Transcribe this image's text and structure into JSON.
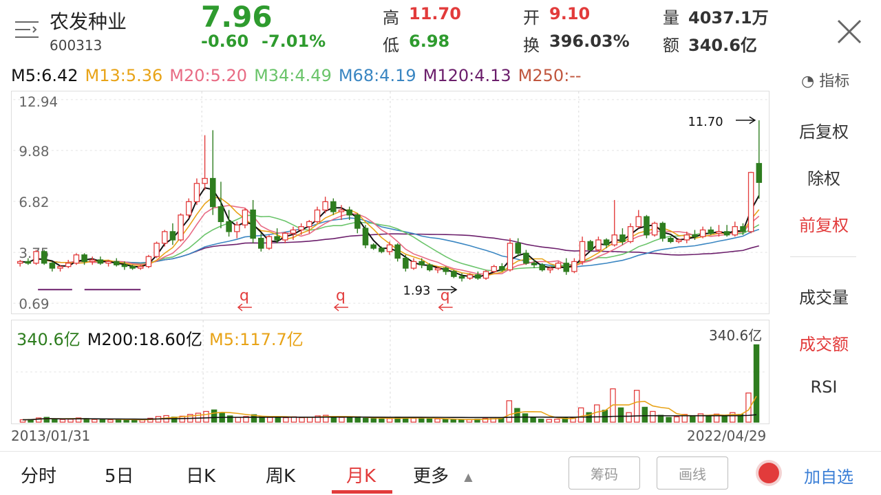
{
  "header": {
    "stock_name": "农发种业",
    "stock_code": "600313",
    "price": "7.96",
    "change": "-0.60",
    "change_pct": "-7.01%",
    "high_label": "高",
    "high_value": "11.70",
    "low_label": "低",
    "low_value": "6.98",
    "open_label": "开",
    "open_value": "9.10",
    "turnover_label": "换",
    "turnover_value": "396.03%",
    "volume_label": "量",
    "volume_value": "4037.1万",
    "amount_label": "额",
    "amount_value": "340.6亿"
  },
  "ma_row": {
    "m5": "M5:6.42",
    "m13": "M13:5.36",
    "m20": "M20:5.20",
    "m34": "M34:4.49",
    "m68": "M68:4.19",
    "m120": "M120:4.13",
    "m250": "M250:--",
    "indicator_label": "指标"
  },
  "colors": {
    "up": "#e23b3b",
    "down": "#2e7d1f",
    "m5": "#111111",
    "m13": "#e8a317",
    "m20": "#e86b84",
    "m34": "#6ac46a",
    "m68": "#3a86c2",
    "m120": "#6b1e6b",
    "m250": "#c0563e"
  },
  "price_axis": {
    "ticks": [
      "12.94",
      "9.88",
      "6.82",
      "3.75",
      "0.69"
    ]
  },
  "annotations": {
    "high_mark": "11.70",
    "low_mark": "1.93",
    "q_mark": "q"
  },
  "volume_panel": {
    "amount": "340.6亿",
    "m200": "M200:18.60亿",
    "m5": "M5:117.7亿",
    "max_label": "340.6亿"
  },
  "dates": {
    "start": "2013/01/31",
    "end": "2022/04/29"
  },
  "side_menu": {
    "items": [
      "后复权",
      "除权",
      "前复权",
      "成交量",
      "成交额",
      "RSI"
    ]
  },
  "tabs": [
    "分时",
    "5日",
    "日K",
    "周K",
    "月K",
    "更多"
  ],
  "buttons": {
    "chips": "筹码",
    "draw": "画线",
    "add_fav": "加自选"
  },
  "chart_data": {
    "type": "candlestick",
    "period": "monthly",
    "ylim": [
      0.69,
      12.94
    ],
    "candles": [
      [
        3.1,
        3.3,
        2.9,
        3.2
      ],
      [
        3.2,
        3.4,
        3.0,
        3.1
      ],
      [
        3.1,
        3.9,
        3.0,
        3.8
      ],
      [
        3.8,
        3.9,
        3.0,
        3.1
      ],
      [
        3.1,
        3.2,
        2.6,
        2.8
      ],
      [
        2.8,
        3.0,
        2.6,
        2.9
      ],
      [
        2.9,
        3.3,
        2.8,
        3.1
      ],
      [
        3.1,
        3.7,
        3.0,
        3.6
      ],
      [
        3.6,
        3.7,
        3.0,
        3.2
      ],
      [
        3.2,
        3.5,
        3.0,
        3.3
      ],
      [
        3.3,
        3.5,
        3.0,
        3.1
      ],
      [
        3.1,
        3.3,
        2.9,
        3.2
      ],
      [
        3.2,
        3.4,
        2.9,
        3.0
      ],
      [
        3.0,
        3.2,
        2.7,
        2.9
      ],
      [
        2.9,
        3.0,
        2.7,
        2.8
      ],
      [
        2.8,
        3.0,
        2.7,
        2.9
      ],
      [
        2.9,
        3.6,
        2.8,
        3.5
      ],
      [
        3.5,
        4.4,
        3.4,
        4.3
      ],
      [
        4.3,
        5.1,
        4.1,
        5.0
      ],
      [
        5.0,
        5.5,
        4.2,
        4.5
      ],
      [
        4.5,
        6.1,
        4.4,
        6.0
      ],
      [
        6.0,
        7.0,
        5.8,
        6.8
      ],
      [
        6.8,
        8.2,
        6.6,
        7.9
      ],
      [
        7.9,
        10.8,
        7.5,
        8.2
      ],
      [
        8.2,
        11.1,
        6.0,
        6.5
      ],
      [
        6.5,
        8.0,
        5.2,
        5.6
      ],
      [
        5.6,
        6.3,
        4.7,
        5.0
      ],
      [
        5.0,
        5.6,
        4.6,
        5.4
      ],
      [
        5.4,
        6.4,
        5.2,
        6.3
      ],
      [
        6.3,
        6.9,
        4.3,
        4.6
      ],
      [
        4.6,
        4.9,
        3.8,
        4.0
      ],
      [
        4.0,
        4.8,
        3.9,
        4.7
      ],
      [
        4.7,
        5.2,
        4.3,
        4.5
      ],
      [
        4.5,
        5.0,
        4.3,
        4.9
      ],
      [
        4.9,
        5.3,
        4.5,
        5.1
      ],
      [
        5.1,
        5.5,
        4.8,
        5.3
      ],
      [
        5.3,
        5.7,
        4.9,
        5.6
      ],
      [
        5.6,
        6.5,
        5.5,
        6.3
      ],
      [
        6.3,
        7.1,
        6.1,
        6.8
      ],
      [
        6.8,
        7.0,
        6.0,
        6.2
      ],
      [
        6.2,
        6.6,
        5.7,
        6.3
      ],
      [
        6.3,
        6.5,
        5.7,
        6.0
      ],
      [
        6.0,
        6.1,
        4.9,
        5.2
      ],
      [
        5.2,
        5.4,
        4.0,
        4.2
      ],
      [
        4.2,
        4.3,
        3.9,
        4.0
      ],
      [
        4.0,
        4.1,
        3.7,
        3.8
      ],
      [
        3.8,
        4.4,
        3.6,
        4.2
      ],
      [
        4.2,
        4.3,
        3.2,
        3.4
      ],
      [
        3.4,
        3.6,
        2.6,
        2.8
      ],
      [
        2.8,
        3.4,
        2.7,
        3.2
      ],
      [
        3.2,
        3.4,
        2.8,
        3.0
      ],
      [
        3.0,
        3.1,
        2.6,
        2.7
      ],
      [
        2.7,
        2.9,
        2.5,
        2.8
      ],
      [
        2.8,
        2.9,
        2.4,
        2.6
      ],
      [
        2.6,
        2.7,
        2.2,
        2.3
      ],
      [
        2.3,
        2.5,
        2.0,
        2.2
      ],
      [
        2.2,
        2.5,
        2.1,
        2.4
      ],
      [
        2.4,
        2.6,
        2.1,
        2.2
      ],
      [
        2.2,
        2.7,
        2.1,
        2.6
      ],
      [
        2.6,
        3.0,
        2.5,
        2.9
      ],
      [
        2.9,
        3.1,
        2.6,
        2.7
      ],
      [
        2.7,
        4.6,
        2.6,
        4.3
      ],
      [
        4.3,
        4.6,
        3.5,
        3.7
      ],
      [
        3.7,
        3.9,
        3.0,
        3.1
      ],
      [
        3.1,
        3.3,
        2.8,
        3.0
      ],
      [
        3.0,
        3.1,
        2.6,
        2.7
      ],
      [
        2.7,
        2.9,
        2.5,
        2.8
      ],
      [
        2.8,
        3.2,
        2.7,
        3.1
      ],
      [
        3.1,
        3.4,
        2.4,
        2.6
      ],
      [
        2.6,
        3.4,
        2.5,
        3.2
      ],
      [
        3.2,
        4.7,
        3.0,
        4.4
      ],
      [
        4.4,
        4.5,
        3.8,
        3.9
      ],
      [
        3.9,
        4.7,
        3.8,
        4.5
      ],
      [
        4.5,
        4.6,
        4.0,
        4.2
      ],
      [
        4.2,
        6.9,
        4.1,
        4.8
      ],
      [
        4.8,
        5.2,
        4.2,
        4.4
      ],
      [
        4.4,
        5.5,
        4.3,
        5.3
      ],
      [
        5.3,
        6.3,
        5.2,
        5.9
      ],
      [
        5.9,
        6.0,
        4.6,
        4.8
      ],
      [
        4.8,
        5.6,
        4.7,
        5.5
      ],
      [
        5.5,
        5.6,
        4.4,
        4.6
      ],
      [
        4.6,
        4.7,
        4.3,
        4.4
      ],
      [
        4.4,
        4.6,
        4.3,
        4.5
      ],
      [
        4.5,
        5.0,
        4.3,
        4.8
      ],
      [
        4.8,
        5.1,
        4.5,
        4.7
      ],
      [
        4.7,
        5.3,
        4.6,
        5.1
      ],
      [
        5.1,
        5.3,
        4.8,
        4.9
      ],
      [
        4.9,
        5.4,
        4.7,
        5.0
      ],
      [
        5.0,
        5.4,
        4.7,
        4.8
      ],
      [
        4.8,
        5.6,
        4.7,
        5.3
      ],
      [
        5.3,
        5.5,
        4.8,
        5.0
      ],
      [
        5.0,
        8.6,
        4.9,
        8.56
      ],
      [
        9.1,
        11.7,
        6.98,
        7.96
      ]
    ],
    "volumes": [
      0.8,
      0.9,
      1.4,
      1.6,
      1.0,
      0.9,
      1.0,
      1.4,
      1.2,
      0.9,
      1.0,
      0.8,
      0.9,
      0.8,
      0.7,
      0.8,
      1.3,
      1.9,
      2.2,
      1.7,
      2.0,
      2.6,
      3.0,
      3.6,
      4.1,
      3.2,
      2.1,
      1.6,
      1.9,
      2.5,
      1.9,
      1.6,
      1.7,
      1.5,
      1.8,
      1.5,
      1.7,
      2.1,
      2.3,
      1.9,
      1.6,
      1.4,
      1.8,
      1.3,
      1.2,
      1.0,
      1.2,
      1.7,
      1.6,
      1.3,
      1.3,
      1.1,
      1.1,
      0.9,
      0.8,
      0.9,
      0.8,
      1.0,
      1.3,
      1.6,
      1.3,
      7.2,
      4.6,
      2.8,
      1.7,
      1.0,
      0.9,
      1.0,
      1.6,
      1.5,
      4.8,
      3.2,
      5.8,
      4.0,
      11.2,
      4.8,
      3.2,
      10.7,
      5.0,
      3.6,
      2.3,
      1.6,
      1.8,
      2.6,
      2.2,
      2.8,
      2.1,
      2.7,
      2.0,
      3.2,
      2.6,
      9.8,
      26.0
    ]
  }
}
